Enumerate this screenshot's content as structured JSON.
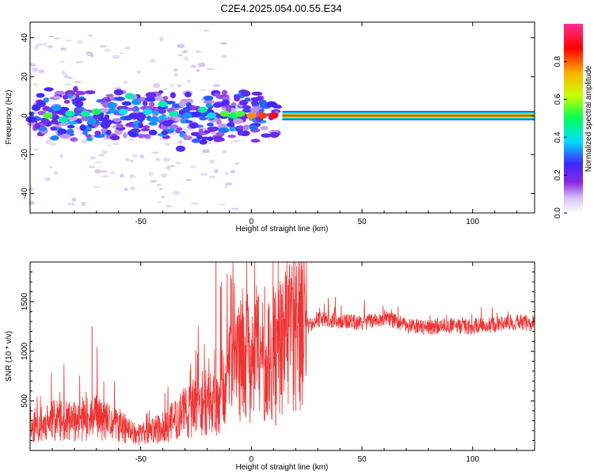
{
  "title": "C2E4.2025.054.00.55.E34",
  "colors": {
    "snr_line": "#ee3333",
    "colormap": [
      "#ffffff",
      "#d6c2f5",
      "#8a2be2",
      "#3c28ff",
      "#00e0ff",
      "#00ff55",
      "#c8ff00",
      "#ffb000",
      "#ff0000",
      "#ff2f92"
    ]
  },
  "chart_data": [
    {
      "type": "heatmap",
      "xlabel": "Height of straight line (km)",
      "ylabel": "Frequency (Hz)",
      "xlim": [
        -100,
        128
      ],
      "ylim": [
        -50,
        48
      ],
      "xticks": [
        -50,
        0,
        50,
        100
      ],
      "yticks": [
        -40,
        -20,
        0,
        20,
        40
      ],
      "colorbar": {
        "label": "Normalized spectral amplitude",
        "range": [
          0,
          1
        ],
        "ticks": [
          "0.0",
          "0.2",
          "0.4",
          "0.6",
          "0.8"
        ],
        "tick_values": [
          0.0,
          0.2,
          0.4,
          0.6,
          0.8
        ]
      },
      "band_center_hz": 0,
      "band_halfwidth_hz": 2,
      "stable_from_km": 14,
      "stable_amplitude": 0.9,
      "clusters": [
        {
          "x": -95,
          "y": 6,
          "a": 0.3
        },
        {
          "x": -92,
          "y": 0,
          "a": 0.6
        },
        {
          "x": -88,
          "y": 4,
          "a": 0.4
        },
        {
          "x": -85,
          "y": -2,
          "a": 0.5
        },
        {
          "x": -82,
          "y": 1,
          "a": 0.5
        },
        {
          "x": -78,
          "y": 6,
          "a": 0.3
        },
        {
          "x": -75,
          "y": 1,
          "a": 0.5
        },
        {
          "x": -72,
          "y": -3,
          "a": 0.4
        },
        {
          "x": -70,
          "y": 2,
          "a": 0.55
        },
        {
          "x": -66,
          "y": -5,
          "a": 0.3
        },
        {
          "x": -63,
          "y": 5,
          "a": 0.4
        },
        {
          "x": -60,
          "y": 12,
          "a": 0.3
        },
        {
          "x": -58,
          "y": 2,
          "a": 0.45
        },
        {
          "x": -55,
          "y": 10,
          "a": 0.5
        },
        {
          "x": -52,
          "y": 7,
          "a": 0.4
        },
        {
          "x": -50,
          "y": 0,
          "a": 0.3
        },
        {
          "x": -47,
          "y": 2,
          "a": 0.45
        },
        {
          "x": -44,
          "y": -2,
          "a": 0.4
        },
        {
          "x": -40,
          "y": 6,
          "a": 0.5
        },
        {
          "x": -38,
          "y": -4,
          "a": 0.3
        },
        {
          "x": -35,
          "y": 1,
          "a": 0.5
        },
        {
          "x": -32,
          "y": -17,
          "a": 0.3
        },
        {
          "x": -29,
          "y": 0,
          "a": 0.4
        },
        {
          "x": -26,
          "y": -5,
          "a": 0.3
        },
        {
          "x": -22,
          "y": 3,
          "a": 0.5
        },
        {
          "x": -18,
          "y": 0,
          "a": 0.45
        },
        {
          "x": -15,
          "y": -12,
          "a": 0.25
        },
        {
          "x": -12,
          "y": 1,
          "a": 0.6
        },
        {
          "x": -8,
          "y": 0,
          "a": 0.55
        },
        {
          "x": -5,
          "y": 1,
          "a": 0.6
        },
        {
          "x": 0,
          "y": 0,
          "a": 0.8
        },
        {
          "x": 5,
          "y": 0,
          "a": 0.85
        },
        {
          "x": 10,
          "y": 0,
          "a": 0.9
        }
      ]
    },
    {
      "type": "line",
      "xlabel": "Height of straight line (km)",
      "ylabel": "SNR (10 * v/v)",
      "xlim": [
        -100,
        128
      ],
      "ylim": [
        0,
        1900
      ],
      "xticks": [
        -50,
        0,
        50,
        100
      ],
      "yticks": [
        500,
        1000,
        1500
      ],
      "series": [
        {
          "x": [
            -100,
            -90,
            -80,
            -70,
            -60,
            -50,
            -40,
            -30,
            -20,
            -15,
            -12,
            -8,
            -5,
            0,
            3,
            6,
            9,
            12,
            15,
            20,
            25,
            30,
            40,
            50,
            60,
            70,
            80,
            90,
            100,
            110,
            120,
            128
          ],
          "values": [
            230,
            300,
            290,
            330,
            240,
            160,
            230,
            380,
            500,
            480,
            700,
            800,
            900,
            920,
            1000,
            850,
            900,
            1000,
            1050,
            1150,
            1250,
            1320,
            1300,
            1290,
            1330,
            1260,
            1240,
            1260,
            1250,
            1270,
            1300,
            1270
          ]
        }
      ],
      "spikes": [
        {
          "x": -72,
          "y": 1250
        },
        {
          "x": -16,
          "y": 1900
        },
        {
          "x": -14,
          "y": 1650
        },
        {
          "x": 6,
          "y": 1650
        },
        {
          "x": 10,
          "y": 1650
        },
        {
          "x": 11,
          "y": 250
        }
      ]
    }
  ]
}
